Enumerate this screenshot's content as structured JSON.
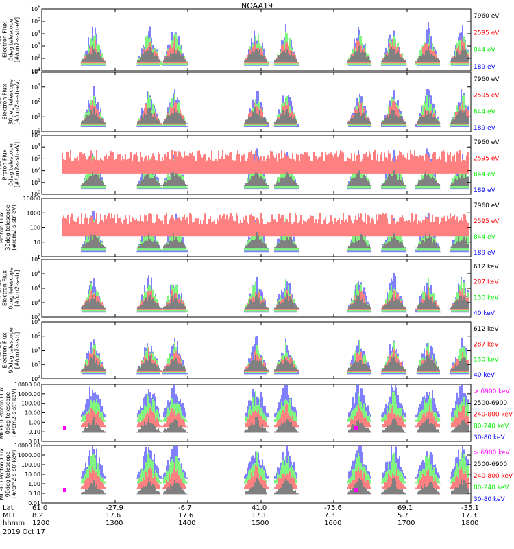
{
  "title": "NOAA19",
  "colors": {
    "blue": "#0000ff",
    "red": "#ff0000",
    "green": "#00ee00",
    "black": "#000000",
    "magenta": "#ff00ff"
  },
  "chart_data": [
    {
      "type": "line",
      "instrument": "TED",
      "ylabel": [
        "TED",
        "Electron Flux",
        "0deg telescope",
        "[#/cm2-s-str-eV]"
      ],
      "yticks": [
        "10^1",
        "10^2",
        "10^3",
        "10^4",
        "10^5",
        "10^6"
      ],
      "legend": [
        {
          "label": "7960 eV",
          "color": "#000000"
        },
        {
          "label": "2595 eV",
          "color": "#ff0000"
        },
        {
          "label": "844 eV",
          "color": "#00ee00"
        },
        {
          "label": "189 eV",
          "color": "#0000ff"
        }
      ]
    },
    {
      "type": "line",
      "instrument": "TED",
      "ylabel": [
        "TED",
        "Electron Flux",
        "30deg telescope",
        "[#/cm2-s-str-eV]"
      ],
      "yticks": [
        "10^0",
        "10^1",
        "10^2",
        "10^3",
        "10^4"
      ],
      "legend": [
        {
          "label": "7960 eV",
          "color": "#000000"
        },
        {
          "label": "2595 eV",
          "color": "#ff0000"
        },
        {
          "label": "844 eV",
          "color": "#00ee00"
        },
        {
          "label": "189 eV",
          "color": "#0000ff"
        }
      ]
    },
    {
      "type": "line",
      "instrument": "TED",
      "ylabel": [
        "TED",
        "Proton Flux",
        "0deg telescope",
        "[#/cm2-s-str-eV]"
      ],
      "yticks": [
        "10^0",
        "10^1",
        "10^2",
        "10^3",
        "10^4",
        "10^5"
      ],
      "legend": [
        {
          "label": "7960 eV",
          "color": "#000000"
        },
        {
          "label": "2595 eV",
          "color": "#ff0000"
        },
        {
          "label": "844 eV",
          "color": "#00ee00"
        },
        {
          "label": "189 eV",
          "color": "#0000ff"
        }
      ]
    },
    {
      "type": "line",
      "instrument": "",
      "ylabel": [
        "Proton Flux",
        "30deg telescope",
        "[#/cm2-s-str-eV]"
      ],
      "yticks": [
        "1",
        "10",
        "100",
        "1000",
        "10000"
      ],
      "legend": [
        {
          "label": "7960 eV",
          "color": "#000000"
        },
        {
          "label": "2595 eV",
          "color": "#ff0000"
        },
        {
          "label": "844 eV",
          "color": "#00ee00"
        },
        {
          "label": "189 eV",
          "color": "#0000ff"
        }
      ]
    },
    {
      "type": "line",
      "instrument": "MEPED",
      "ylabel": [
        "MEPED",
        "Electron Flux",
        "0deg telescope",
        "[#/cm2-s-str]"
      ],
      "yticks": [
        "10^2",
        "10^3",
        "10^4",
        "10^5",
        "10^6"
      ],
      "legend": [
        {
          "label": "612 keV",
          "color": "#000000"
        },
        {
          "label": "287 keV",
          "color": "#ff0000"
        },
        {
          "label": "130 keV",
          "color": "#00ee00"
        },
        {
          "label": "40 keV",
          "color": "#0000ff"
        }
      ]
    },
    {
      "type": "line",
      "instrument": "MEPED",
      "ylabel": [
        "MEPED",
        "Electron Flux",
        "90deg telescope",
        "[#/cm2-s-str]"
      ],
      "yticks": [
        "10^2",
        "10^3",
        "10^4",
        "10^5",
        "10^6"
      ],
      "legend": [
        {
          "label": "612 keV",
          "color": "#000000"
        },
        {
          "label": "287 keV",
          "color": "#ff0000"
        },
        {
          "label": "130 keV",
          "color": "#00ee00"
        },
        {
          "label": "40 keV",
          "color": "#0000ff"
        }
      ]
    },
    {
      "type": "line",
      "instrument": "MEPED",
      "ylabel": [
        "MEPED Proton Flux",
        "0deg telescope",
        "[#/cm2-s-str-keV]"
      ],
      "yticks": [
        "0.01",
        "0.10",
        "1.00",
        "10.00",
        "100.00",
        "1000.00",
        "10000.00"
      ],
      "legend": [
        {
          "label": "> 6900 keV",
          "color": "#ff00ff"
        },
        {
          "label": "2500-6900",
          "color": "#000000"
        },
        {
          "label": "240-800 keV",
          "color": "#ff0000"
        },
        {
          "label": "80-240 keV",
          "color": "#00ee00"
        },
        {
          "label": "30-80 keV",
          "color": "#0000ff"
        }
      ]
    },
    {
      "type": "line",
      "instrument": "MEPED",
      "ylabel": [
        "MEPED Proton Flux",
        "90deg telescope",
        "[#/cm2-s-str-keV]"
      ],
      "yticks": [
        "0.01",
        "0.10",
        "1.00",
        "10.00",
        "100.00",
        "1000.00",
        "10000.00"
      ],
      "legend": [
        {
          "label": "> 6900 keV",
          "color": "#ff00ff"
        },
        {
          "label": "2500-6900",
          "color": "#000000"
        },
        {
          "label": "240-800 keV",
          "color": "#ff0000"
        },
        {
          "label": "80-240 keV",
          "color": "#00ee00"
        },
        {
          "label": "30-80 keV",
          "color": "#0000ff"
        }
      ]
    }
  ],
  "ephemeris": {
    "row_labels": [
      "Lat",
      "MLT",
      "hhmm"
    ],
    "lat": [
      "61.0",
      "-27.9",
      "-6.7",
      "41.0",
      "-75.6",
      "69.1",
      "-35.1"
    ],
    "mlt": [
      "8.2",
      "17.6",
      "17.6",
      "17.1",
      "7.3",
      "5.7",
      "17.3"
    ],
    "hhmm": [
      "1200",
      "1300",
      "1400",
      "1500",
      "1600",
      "1700",
      "1800"
    ]
  },
  "date": "2019 Oct 17"
}
